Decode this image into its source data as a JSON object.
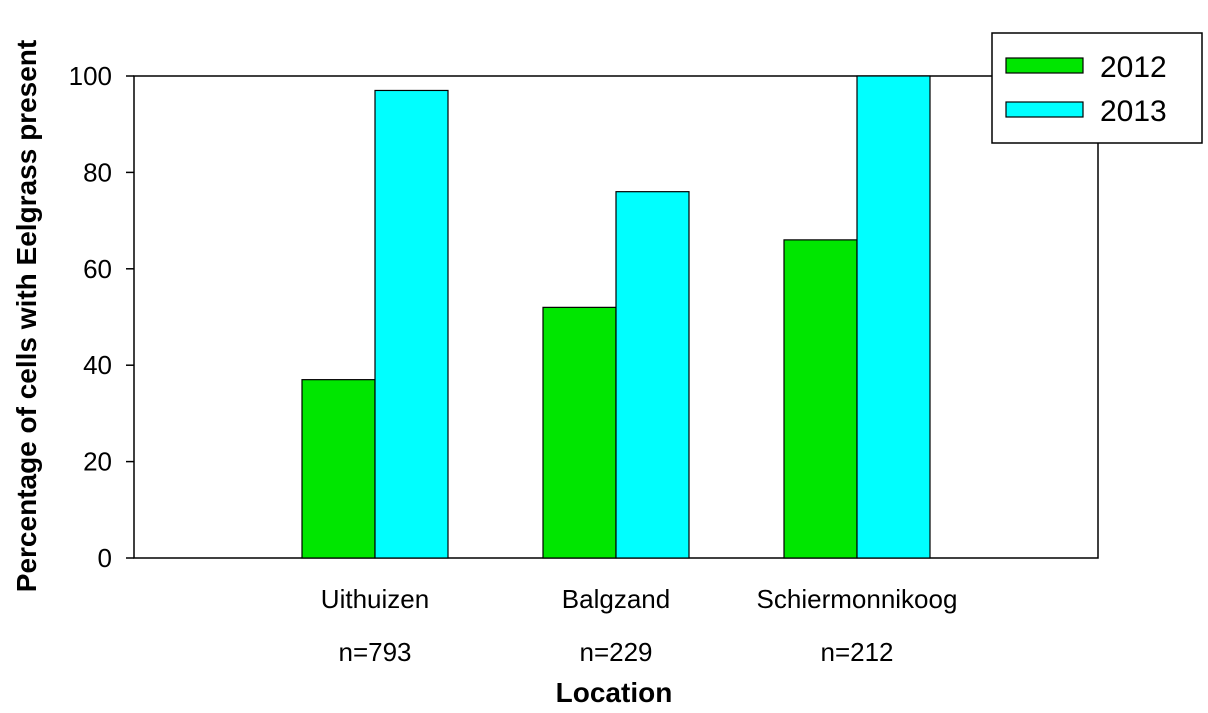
{
  "chart_data": {
    "type": "bar",
    "xlabel": "Location",
    "ylabel": "Percentage of cells with Eelgrass present",
    "categories": [
      "Uithuizen",
      "Balgzand",
      "Schiermonnikoog"
    ],
    "category_notes": [
      "n=793",
      "n=229",
      "n=212"
    ],
    "series": [
      {
        "name": "2012",
        "values": [
          37,
          52,
          66
        ],
        "color": "#00e600"
      },
      {
        "name": "2013",
        "values": [
          97,
          76,
          100
        ],
        "color": "#00ffff"
      }
    ],
    "ylim": [
      0,
      100
    ],
    "yticks": [
      0,
      20,
      40,
      60,
      80,
      100
    ],
    "grid": false,
    "legend_position": "top-right"
  }
}
